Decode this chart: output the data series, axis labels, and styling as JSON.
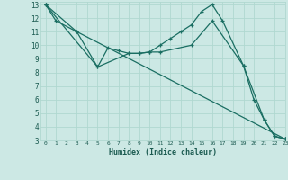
{
  "xlabel": "Humidex (Indice chaleur)",
  "bg_color": "#cce8e4",
  "grid_color": "#b0d8d0",
  "line_color": "#1a6e62",
  "xlim": [
    -0.5,
    23
  ],
  "ylim": [
    3,
    13.2
  ],
  "yticks": [
    3,
    4,
    5,
    6,
    7,
    8,
    9,
    10,
    11,
    12,
    13
  ],
  "xticks": [
    0,
    1,
    2,
    3,
    4,
    5,
    6,
    7,
    8,
    9,
    10,
    11,
    12,
    13,
    14,
    15,
    16,
    17,
    18,
    19,
    20,
    21,
    22,
    23
  ],
  "series": [
    {
      "x": [
        0,
        1,
        3,
        5,
        6,
        7,
        8,
        9,
        10,
        11,
        12,
        13,
        14,
        15,
        16,
        17,
        19,
        20,
        21,
        22,
        23
      ],
      "y": [
        13,
        11.8,
        11,
        8.4,
        9.8,
        9.6,
        9.4,
        9.4,
        9.5,
        10.0,
        10.5,
        11.0,
        11.5,
        12.5,
        13.0,
        11.8,
        8.5,
        6.0,
        4.5,
        3.3,
        3.1
      ]
    },
    {
      "x": [
        0,
        3,
        23
      ],
      "y": [
        13,
        11,
        3.1
      ]
    },
    {
      "x": [
        0,
        5,
        8,
        9,
        10,
        11,
        14,
        16,
        19,
        21,
        22,
        23
      ],
      "y": [
        13,
        8.4,
        9.4,
        9.4,
        9.5,
        9.5,
        10.0,
        11.8,
        8.5,
        4.5,
        3.3,
        3.1
      ]
    }
  ]
}
